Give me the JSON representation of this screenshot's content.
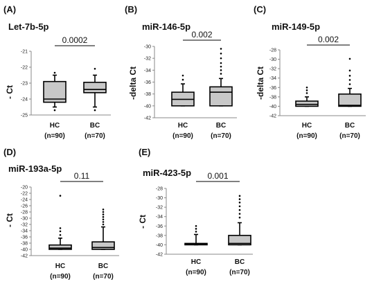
{
  "chart_data": [
    {
      "type": "box",
      "panel": "(A)",
      "title": "Let-7b-5p",
      "ylabel": "- Ct",
      "ylim": [
        -25,
        -21
      ],
      "yticks": [
        -21,
        -22,
        -23,
        -24,
        -25
      ],
      "categories": [
        "HC\n(n=90)",
        "BC\n(n=70)"
      ],
      "boxes": [
        {
          "q1": -24.2,
          "median": -24.0,
          "q3": -22.9,
          "whisker_low": -24.5,
          "whisker_high": -22.5,
          "outliers": [
            -22.35,
            -24.7
          ]
        },
        {
          "q1": -23.6,
          "median": -23.4,
          "q3": -22.95,
          "whisker_low": -24.5,
          "whisker_high": -22.5,
          "outliers": [
            -22.1,
            -24.7
          ]
        }
      ],
      "pvalue": "0.0002"
    },
    {
      "type": "box",
      "panel": "(B)",
      "title": "miR-146-5p",
      "ylabel": "-delta Ct",
      "ylim": [
        -42,
        -30
      ],
      "yticks": [
        -30,
        -32,
        -34,
        -36,
        -38,
        -40,
        -42
      ],
      "categories": [
        "HC\n(n=90)",
        "BC\n(n=70)"
      ],
      "boxes": [
        {
          "q1": -40.0,
          "median": -38.9,
          "q3": -37.7,
          "whisker_low": -40.0,
          "whisker_high": -36.3,
          "outliers": [
            -35.6,
            -34.9
          ]
        },
        {
          "q1": -40.0,
          "median": -37.7,
          "q3": -36.8,
          "whisker_low": -40.0,
          "whisker_high": -35.4,
          "outliers": [
            -34.6,
            -34.0,
            -33.4,
            -32.8,
            -32.0,
            -31.2,
            -30.4
          ]
        }
      ],
      "pvalue": "0.002"
    },
    {
      "type": "box",
      "panel": "(C)",
      "title": "miR-149-5p",
      "ylabel": "-delta Ct",
      "ylim": [
        -42,
        -28
      ],
      "yticks": [
        -28,
        -30,
        -32,
        -34,
        -36,
        -38,
        -40,
        -42
      ],
      "categories": [
        "HC\n(n=90)",
        "BC\n(n=70)"
      ],
      "boxes": [
        {
          "q1": -40.0,
          "median": -39.6,
          "q3": -38.9,
          "whisker_low": -40.0,
          "whisker_high": -38.0,
          "outliers": [
            -37.2,
            -36.6,
            -36.0
          ]
        },
        {
          "q1": -40.0,
          "median": -39.8,
          "q3": -37.4,
          "whisker_low": -40.0,
          "whisker_high": -36.2,
          "outliers": [
            -35.3,
            -34.4,
            -33.5,
            -32.4,
            -29.9
          ]
        }
      ],
      "pvalue": "0.002"
    },
    {
      "type": "box",
      "panel": "(D)",
      "title": "miR-193a-5p",
      "ylabel": "- Ct",
      "ylim": [
        -42,
        -20
      ],
      "yticks": [
        -20,
        -22,
        -24,
        -26,
        -28,
        -30,
        -32,
        -34,
        -36,
        -38,
        -40,
        -42
      ],
      "categories": [
        "HC\n(n=90)",
        "BC\n(n=70)"
      ],
      "boxes": [
        {
          "q1": -40.0,
          "median": -39.6,
          "q3": -38.6,
          "whisker_low": -40.0,
          "whisker_high": -36.4,
          "outliers": [
            -35.4,
            -34.2,
            -33.2,
            -22.8
          ]
        },
        {
          "q1": -40.0,
          "median": -39.4,
          "q3": -37.6,
          "whisker_low": -40.0,
          "whisker_high": -32.8,
          "outliers": [
            -32.0,
            -31.2,
            -30.4,
            -29.6,
            -28.8,
            -28.0,
            -27.2
          ]
        }
      ],
      "pvalue": "0.11"
    },
    {
      "type": "box",
      "panel": "(E)",
      "title": "miR-423-5p",
      "ylabel": "- Ct",
      "ylim": [
        -42,
        -28
      ],
      "yticks": [
        -28,
        -30,
        -32,
        -34,
        -36,
        -38,
        -40,
        -42
      ],
      "categories": [
        "HC\n(n=90)",
        "BC\n(n=70)"
      ],
      "boxes": [
        {
          "q1": -40.0,
          "median": -39.9,
          "q3": -39.7,
          "whisker_low": -40.0,
          "whisker_high": -37.8,
          "outliers": [
            -37.2,
            -36.6,
            -36.0
          ]
        },
        {
          "q1": -40.0,
          "median": -39.7,
          "q3": -38.0,
          "whisker_low": -40.0,
          "whisker_high": -35.3,
          "outliers": [
            -34.2,
            -33.4,
            -32.6,
            -31.8,
            -31.0,
            -30.3,
            -29.6
          ]
        }
      ],
      "pvalue": "0.001"
    }
  ],
  "style": {
    "box_fill": "#c8c8c8",
    "line_color": "#000000",
    "axis_color": "#888888"
  }
}
